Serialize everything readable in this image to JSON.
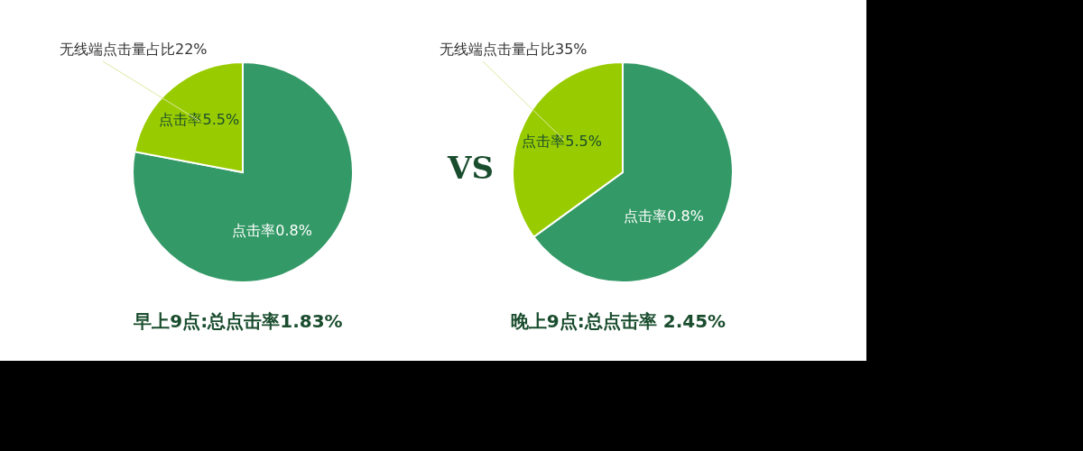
{
  "chart_data": [
    {
      "type": "pie",
      "title": "早上9点:总点击率1.83%",
      "categories": [
        "点击率0.8%",
        "点击率5.5%"
      ],
      "values": [
        78,
        22
      ],
      "colors": [
        "#339966",
        "#99cc00"
      ],
      "annotations": [
        "无线端点击量占比22%",
        "VS"
      ]
    },
    {
      "type": "pie",
      "title": "晚上9点:总点击率 2.45%",
      "categories": [
        "点击率0.8%",
        "点击率5.5%"
      ],
      "values": [
        65,
        35
      ],
      "colors": [
        "#339966",
        "#99cc00"
      ],
      "annotations": [
        "无线端点击量占比35%"
      ]
    }
  ]
}
